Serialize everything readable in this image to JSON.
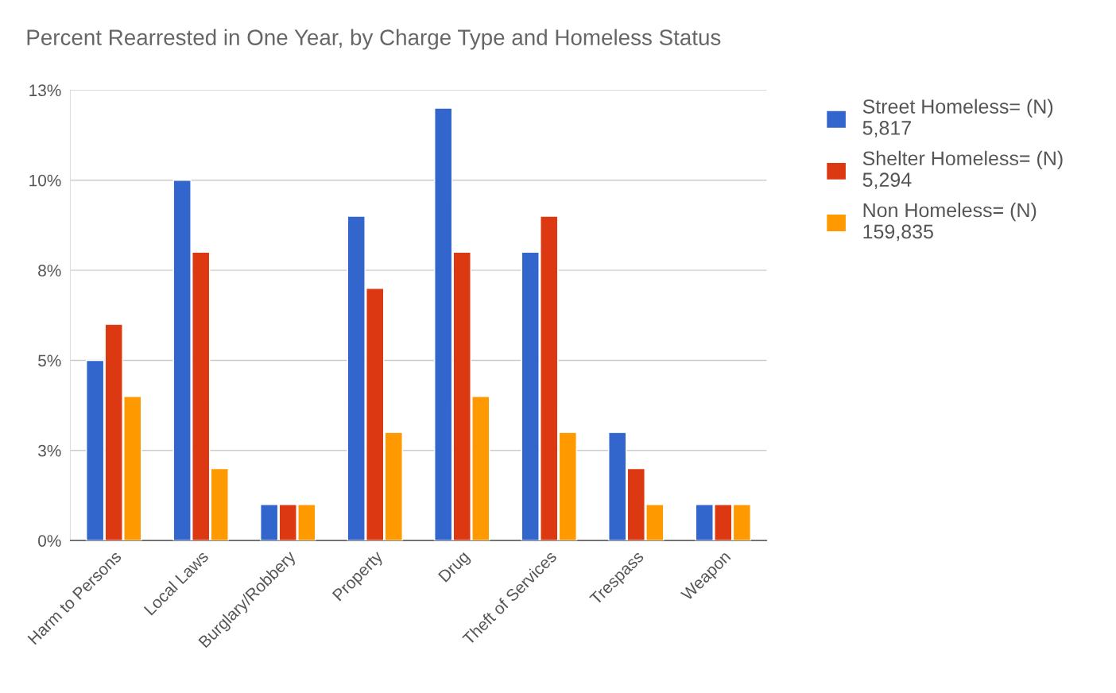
{
  "chart_data": {
    "type": "bar",
    "title": "Percent Rearrested in One Year, by Charge Type and Homeless Status",
    "categories": [
      "Harm to Persons",
      "Local Laws",
      "Burglary/Robbery",
      "Property",
      "Drug",
      "Theft of Services",
      "Trespass",
      "Weapon"
    ],
    "series": [
      {
        "name": "Street Homeless= (N)\n5,817",
        "color": "#3366cc",
        "values": [
          5,
          10,
          1,
          9,
          12,
          8,
          3,
          1
        ]
      },
      {
        "name": "Shelter Homeless= (N)\n5,294",
        "color": "#dc3912",
        "values": [
          6,
          8,
          1,
          7,
          8,
          9,
          2,
          1
        ]
      },
      {
        "name": "Non Homeless= (N)\n159,835",
        "color": "#ff9900",
        "values": [
          4,
          2,
          1,
          3,
          4,
          3,
          1,
          1
        ]
      }
    ],
    "ylim": [
      0,
      12.5
    ],
    "yticks": [
      {
        "value": 0,
        "label": "0%"
      },
      {
        "value": 2.5,
        "label": "3%"
      },
      {
        "value": 5,
        "label": "5%"
      },
      {
        "value": 7.5,
        "label": "8%"
      },
      {
        "value": 10,
        "label": "10%"
      },
      {
        "value": 12.5,
        "label": "13%"
      }
    ],
    "grid": "y",
    "legend": "top right"
  }
}
